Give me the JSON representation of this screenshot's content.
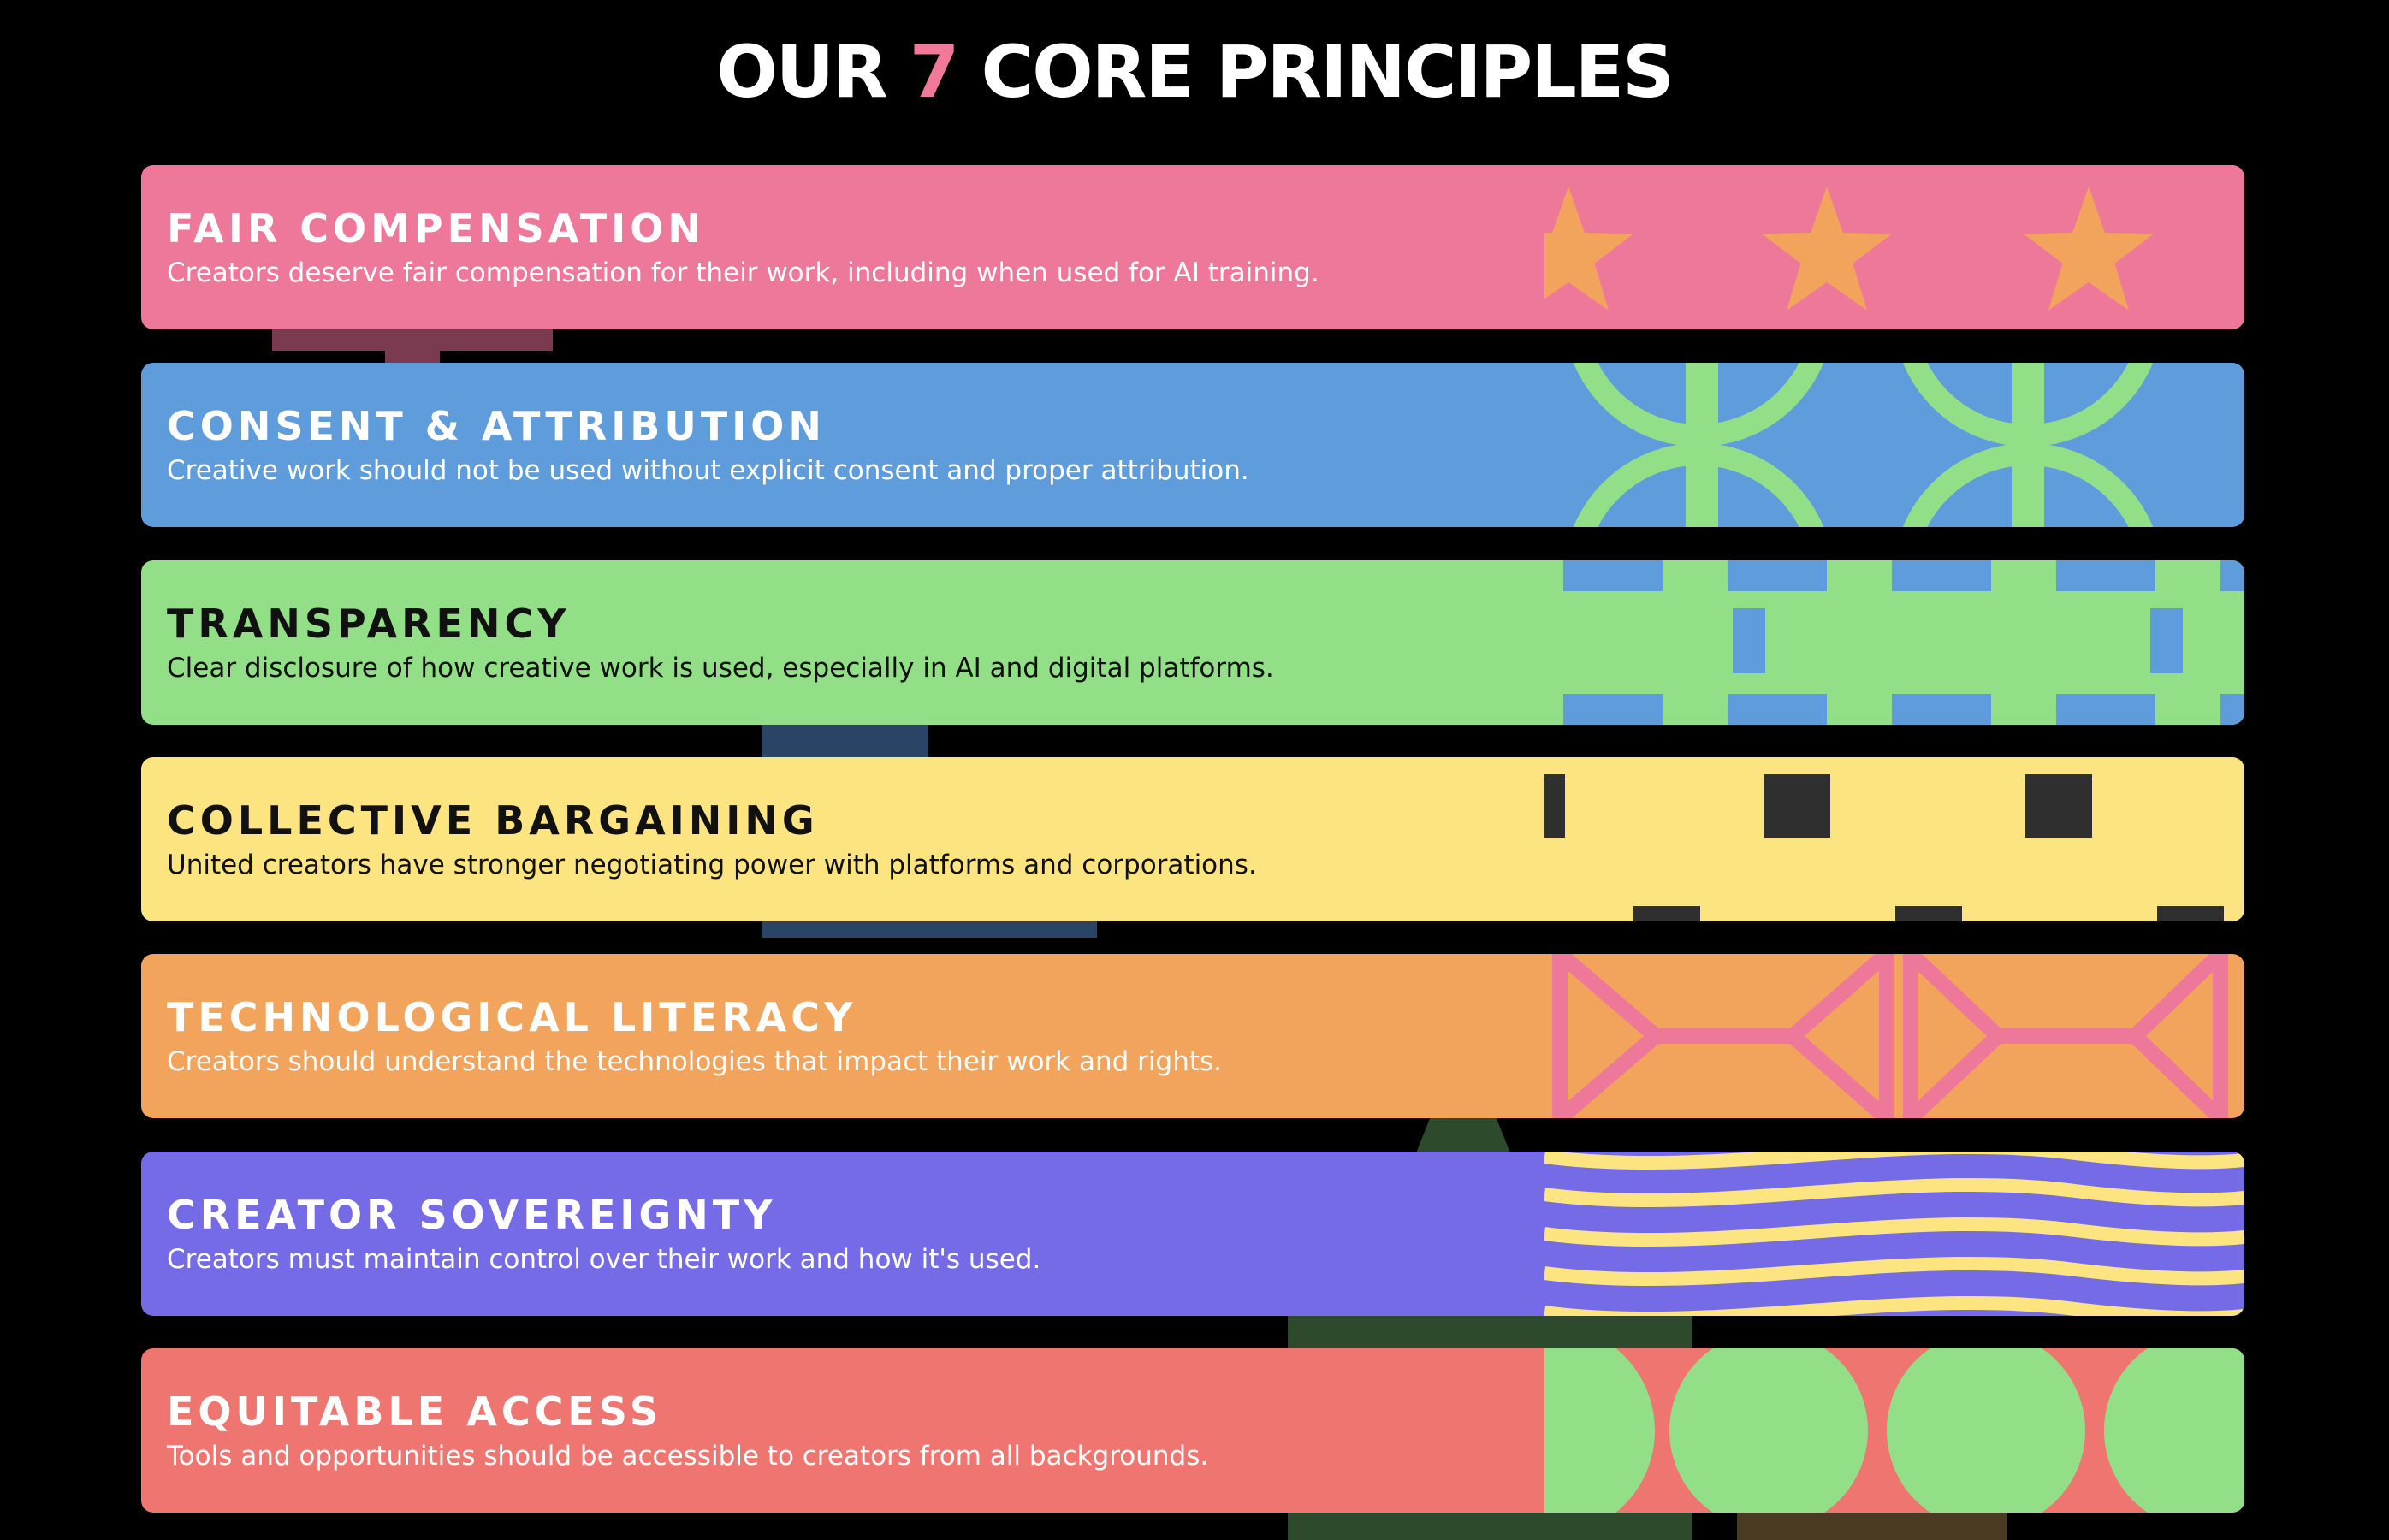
{
  "title": {
    "before": "OUR ",
    "number": "7",
    "after": " CORE PRINCIPLES"
  },
  "colors": {
    "background": "#000000",
    "accent": "#f07898",
    "pink": "#ee7899",
    "blue": "#5f9cdb",
    "green": "#93df88",
    "yellow": "#fce581",
    "orange": "#f2a45c",
    "purple": "#766be6",
    "coral": "#ee7570"
  },
  "principles": [
    {
      "title": "FAIR COMPENSATION",
      "description": "Creators deserve fair compensation for their work, including when used for AI training.",
      "pattern": "star-icon"
    },
    {
      "title": "CONSENT & ATTRIBUTION",
      "description": "Creative work should not be used without explicit consent and proper attribution.",
      "pattern": "chain-link-icon"
    },
    {
      "title": "TRANSPARENCY",
      "description": "Clear disclosure of how creative work is used, especially in AI and digital platforms.",
      "pattern": "grid-icon"
    },
    {
      "title": "COLLECTIVE BARGAINING",
      "description": "United creators have stronger negotiating power with platforms and corporations.",
      "pattern": "square-blocks-icon"
    },
    {
      "title": "TECHNOLOGICAL LITERACY",
      "description": "Creators should understand the technologies that impact their work and rights.",
      "pattern": "lattice-icon"
    },
    {
      "title": "CREATOR SOVEREIGNTY",
      "description": "Creators must maintain control over their work and how it's used.",
      "pattern": "wave-icon"
    },
    {
      "title": "EQUITABLE ACCESS",
      "description": "Tools and opportunities should be accessible to creators from all backgrounds.",
      "pattern": "circle-icon"
    }
  ]
}
